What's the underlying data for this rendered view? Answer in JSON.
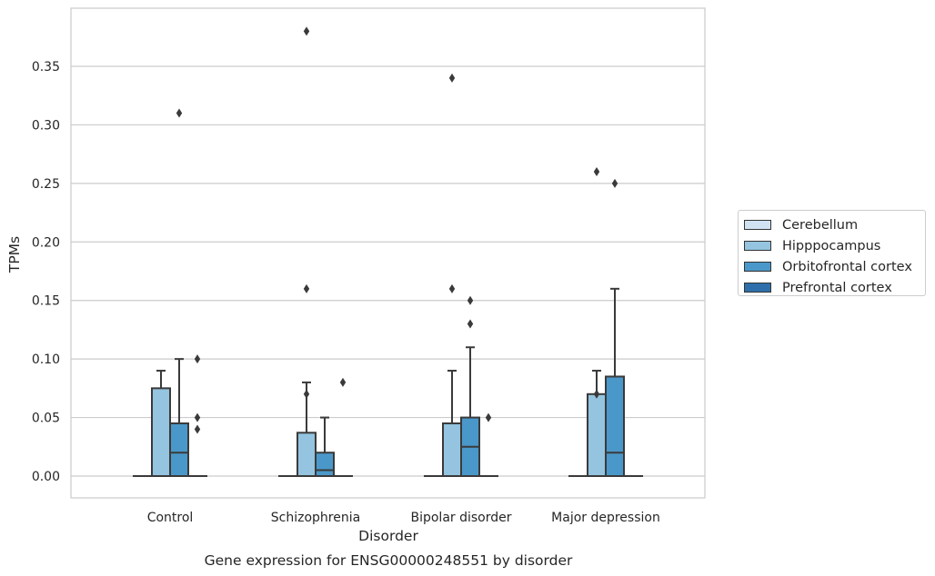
{
  "chart_data": {
    "type": "box",
    "title": "Gene expression for ENSG00000248551 by disorder",
    "xlabel": "Disorder",
    "ylabel": "TPMs",
    "ylim": [
      -0.018,
      0.4
    ],
    "yticks": [
      "0.00",
      "0.05",
      "0.10",
      "0.15",
      "0.20",
      "0.25",
      "0.30",
      "0.35"
    ],
    "grid": true,
    "legend_position": "right",
    "categories": [
      "Control",
      "Schizophrenia",
      "Bipolar disorder",
      "Major depression"
    ],
    "series": [
      {
        "name": "Cerebellum",
        "color": "#d0e1f2",
        "boxes": [
          {
            "q1": 0,
            "median": 0,
            "q3": 0,
            "whisker_low": 0,
            "whisker_high": 0,
            "outliers": []
          },
          {
            "q1": 0,
            "median": 0,
            "q3": 0,
            "whisker_low": 0,
            "whisker_high": 0,
            "outliers": []
          },
          {
            "q1": 0,
            "median": 0,
            "q3": 0,
            "whisker_low": 0,
            "whisker_high": 0,
            "outliers": []
          },
          {
            "q1": 0,
            "median": 0,
            "q3": 0,
            "whisker_low": 0,
            "whisker_high": 0,
            "outliers": []
          }
        ]
      },
      {
        "name": "Hipppocampus",
        "color": "#94c4df",
        "boxes": [
          {
            "q1": 0,
            "median": 0,
            "q3": 0.075,
            "whisker_low": 0,
            "whisker_high": 0.09,
            "outliers": []
          },
          {
            "q1": 0,
            "median": 0,
            "q3": 0.037,
            "whisker_low": 0,
            "whisker_high": 0.08,
            "outliers": [
              0.07,
              0.16,
              0.38
            ]
          },
          {
            "q1": 0,
            "median": 0,
            "q3": 0.045,
            "whisker_low": 0,
            "whisker_high": 0.09,
            "outliers": [
              0.16,
              0.34
            ]
          },
          {
            "q1": 0,
            "median": 0,
            "q3": 0.07,
            "whisker_low": 0,
            "whisker_high": 0.09,
            "outliers": [
              0.07,
              0.26
            ]
          }
        ]
      },
      {
        "name": "Orbitofrontal cortex",
        "color": "#4a98c9",
        "boxes": [
          {
            "q1": 0,
            "median": 0.02,
            "q3": 0.045,
            "whisker_low": 0,
            "whisker_high": 0.1,
            "outliers": [
              0.31
            ]
          },
          {
            "q1": 0,
            "median": 0.005,
            "q3": 0.02,
            "whisker_low": 0,
            "whisker_high": 0.05,
            "outliers": []
          },
          {
            "q1": 0,
            "median": 0.025,
            "q3": 0.05,
            "whisker_low": 0,
            "whisker_high": 0.11,
            "outliers": [
              0.13,
              0.15
            ]
          },
          {
            "q1": 0,
            "median": 0.02,
            "q3": 0.085,
            "whisker_low": 0,
            "whisker_high": 0.16,
            "outliers": [
              0.25
            ]
          }
        ]
      },
      {
        "name": "Prefrontal cortex",
        "color": "#2e6fab",
        "boxes": [
          {
            "q1": 0,
            "median": 0,
            "q3": 0,
            "whisker_low": 0,
            "whisker_high": 0,
            "outliers": [
              0.04,
              0.05,
              0.1
            ]
          },
          {
            "q1": 0,
            "median": 0,
            "q3": 0,
            "whisker_low": 0,
            "whisker_high": 0,
            "outliers": [
              0.08
            ]
          },
          {
            "q1": 0,
            "median": 0,
            "q3": 0,
            "whisker_low": 0,
            "whisker_high": 0,
            "outliers": [
              0.05
            ]
          },
          {
            "q1": 0,
            "median": 0,
            "q3": 0,
            "whisker_low": 0,
            "whisker_high": 0,
            "outliers": []
          }
        ]
      }
    ]
  }
}
